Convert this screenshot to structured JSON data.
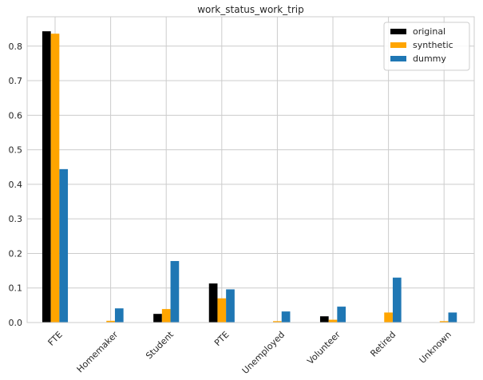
{
  "chart_data": {
    "type": "bar",
    "title": "work_status_work_trip",
    "xlabel": "",
    "ylabel": "",
    "categories": [
      "FTE",
      "Homemaker",
      "Student",
      "PTE",
      "Unemployed",
      "Volunteer",
      "Retired",
      "Unknown"
    ],
    "series": [
      {
        "name": "original",
        "color": "#000000",
        "values": [
          0.843,
          0.0,
          0.025,
          0.113,
          0.0,
          0.018,
          0.0,
          0.0
        ]
      },
      {
        "name": "synthetic",
        "color": "#ffa500",
        "values": [
          0.836,
          0.005,
          0.039,
          0.07,
          0.004,
          0.008,
          0.029,
          0.004
        ]
      },
      {
        "name": "dummy",
        "color": "#1f77b4",
        "values": [
          0.444,
          0.041,
          0.178,
          0.096,
          0.032,
          0.046,
          0.13,
          0.029
        ]
      }
    ],
    "ylim": [
      0,
      0.885
    ],
    "yticks": [
      0.0,
      0.1,
      0.2,
      0.3,
      0.4,
      0.5,
      0.6,
      0.7,
      0.8
    ],
    "ytick_labels": [
      "0.0",
      "0.1",
      "0.2",
      "0.3",
      "0.4",
      "0.5",
      "0.6",
      "0.7",
      "0.8"
    ],
    "grid": true,
    "legend": "top-right",
    "xtick_rotation": 45
  }
}
